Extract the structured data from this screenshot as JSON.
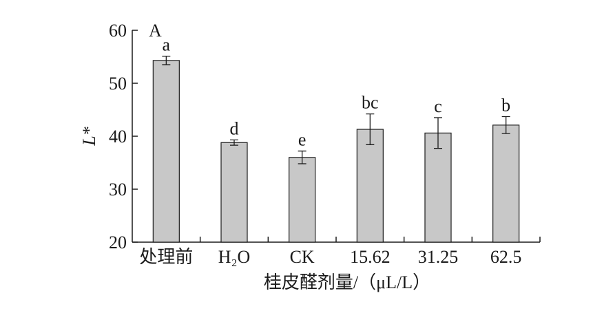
{
  "chart_data": {
    "type": "bar",
    "panel_label": "A",
    "categories": [
      "处理前",
      "H₂O",
      "CK",
      "15.62",
      "31.25",
      "62.5"
    ],
    "values": [
      54.3,
      38.8,
      36.0,
      41.3,
      40.6,
      42.1
    ],
    "errors": [
      0.8,
      0.5,
      1.2,
      2.9,
      2.9,
      1.6
    ],
    "significance": [
      "a",
      "d",
      "e",
      "bc",
      "c",
      "b"
    ],
    "xlabel": "桂皮醛剂量/（μL/L）",
    "ylabel": "L*",
    "ylim": [
      20,
      60
    ],
    "yticks": [
      20,
      30,
      40,
      50,
      60
    ],
    "bar_color": "#c8c8c8",
    "grid": false,
    "legend": "none"
  }
}
